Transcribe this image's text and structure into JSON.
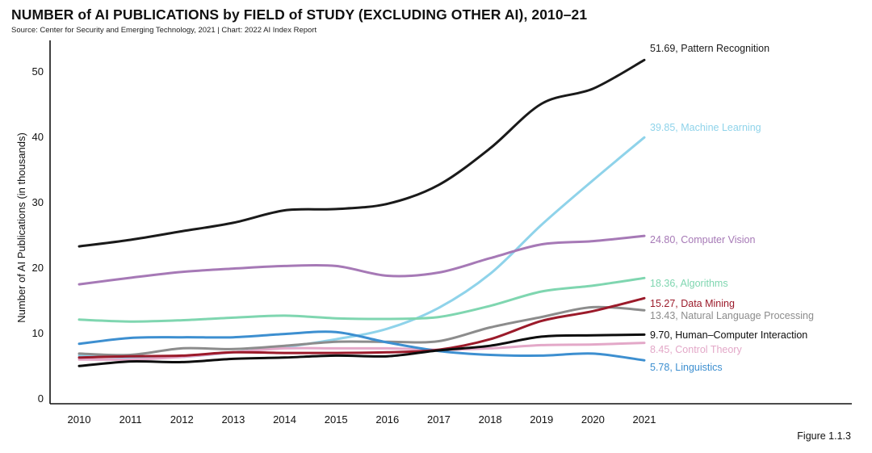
{
  "header": {
    "title": "NUMBER of AI PUBLICATIONS by FIELD of STUDY (EXCLUDING OTHER AI), 2010–21",
    "source": "Source: Center for Security and Emerging Technology, 2021 | Chart: 2022 AI Index Report"
  },
  "footer": {
    "figure": "Figure 1.1.3"
  },
  "chart_data": {
    "type": "line",
    "title": "NUMBER of AI PUBLICATIONS by FIELD of STUDY (EXCLUDING OTHER AI), 2010–21",
    "xlabel": "",
    "ylabel": "Number of AI Publications (in thousands)",
    "ylim": [
      0,
      55
    ],
    "yticks": [
      0,
      10,
      20,
      30,
      40,
      50
    ],
    "x": [
      2010,
      2011,
      2012,
      2013,
      2014,
      2015,
      2016,
      2017,
      2018,
      2019,
      2020,
      2021
    ],
    "series": [
      {
        "name": "Pattern Recognition",
        "label": "51.69, Pattern Recognition",
        "color": "#1a1a1a",
        "values": [
          23.2,
          24.2,
          25.5,
          26.8,
          28.7,
          28.9,
          29.7,
          32.6,
          38.2,
          45.0,
          47.3,
          51.69
        ]
      },
      {
        "name": "Machine Learning",
        "label": "39.85, Machine Learning",
        "color": "#8fd3ea",
        "values": [
          6.5,
          6.2,
          6.3,
          7.0,
          7.8,
          9.0,
          10.6,
          13.8,
          19.0,
          26.5,
          33.3,
          39.85
        ]
      },
      {
        "name": "Computer Vision",
        "label": "24.80, Computer Vision",
        "color": "#a679b6",
        "values": [
          17.4,
          18.4,
          19.3,
          19.8,
          20.2,
          20.2,
          18.7,
          19.2,
          21.4,
          23.5,
          24.0,
          24.8
        ]
      },
      {
        "name": "Algorithms",
        "label": "18.36, Algorithms",
        "color": "#7fd6b0",
        "values": [
          12.0,
          11.7,
          11.9,
          12.3,
          12.6,
          12.2,
          12.1,
          12.4,
          14.1,
          16.3,
          17.2,
          18.36
        ]
      },
      {
        "name": "Data Mining",
        "label": "15.27, Data Mining",
        "color": "#9b1a2a",
        "values": [
          6.2,
          6.4,
          6.5,
          7.0,
          6.9,
          6.9,
          7.0,
          7.4,
          9.0,
          11.8,
          13.3,
          15.27
        ]
      },
      {
        "name": "Natural Language Processing",
        "label": "13.43, Natural Language Processing",
        "color": "#8c8c8c",
        "values": [
          6.8,
          6.6,
          7.6,
          7.5,
          8.0,
          8.6,
          8.6,
          8.7,
          10.8,
          12.4,
          13.9,
          13.43
        ]
      },
      {
        "name": "Human–Computer Interaction",
        "label": "9.70, Human–Computer Interaction",
        "color": "#0d0d0d",
        "values": [
          4.9,
          5.6,
          5.5,
          6.0,
          6.2,
          6.5,
          6.4,
          7.3,
          8.0,
          9.4,
          9.6,
          9.7
        ]
      },
      {
        "name": "Control Theory",
        "label": "8.45, Control Theory",
        "color": "#e3a8c8",
        "values": [
          5.9,
          5.9,
          6.3,
          7.0,
          7.6,
          7.6,
          7.6,
          7.4,
          7.6,
          8.1,
          8.2,
          8.45
        ]
      },
      {
        "name": "Linguistics",
        "label": "5.78, Linguistics",
        "color": "#3d8fd0",
        "values": [
          8.3,
          9.2,
          9.3,
          9.3,
          9.8,
          10.1,
          8.5,
          7.2,
          6.6,
          6.5,
          6.8,
          5.78
        ]
      }
    ]
  }
}
